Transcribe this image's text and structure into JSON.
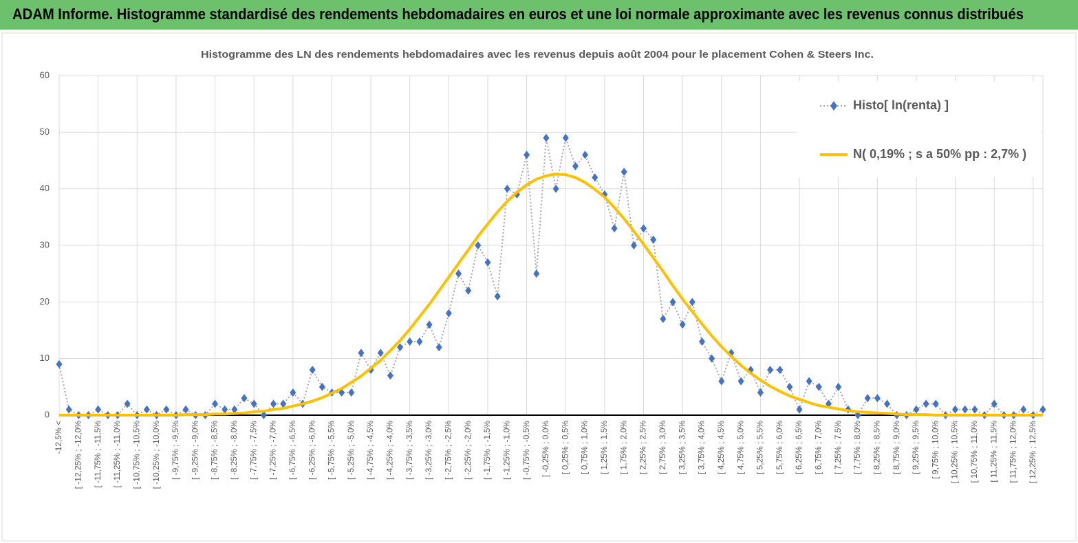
{
  "header": {
    "title": "ADAM Informe. Histogramme standardisé des rendements hebdomadaires en euros et une loi normale approximante avec les revenus connus distribués"
  },
  "chart_data": {
    "type": "line",
    "title": "Histogramme  des LN des rendements hebdomadaires avec les revenus depuis août 2004  pour le placement Cohen & Steers Inc.",
    "categories": [
      "-12,5% <",
      null,
      "[ -12,25% ; -12,0%",
      null,
      "[ -11,75% ; -11,5%",
      null,
      "[ -11,25% ; -11,0%",
      null,
      "[ -10,75% ; -10,5%",
      null,
      "[ -10,25% ; -10,0%",
      null,
      "[ -9,75% ; -9,5%",
      null,
      "[ -9,25% ; -9,0%",
      null,
      "[ -8,75% ; -8,5%",
      null,
      "[ -8,25% ; -8,0%",
      null,
      "[ -7,75% ; -7,5%",
      null,
      "[ -7,25% ; -7,0%",
      null,
      "[ -6,75% ; -6,5%",
      null,
      "[ -6,25% ; -6,0%",
      null,
      "[ -5,75% ; -5,5%",
      null,
      "[ -5,25% ; -5,0%",
      null,
      "[ -4,75% ; -4,5%",
      null,
      "[ -4,25% ; -4,0%",
      null,
      "[ -3,75% ; -3,5%",
      null,
      "[ -3,25% ; -3,0%",
      null,
      "[ -2,75% ; -2,5%",
      null,
      "[ -2,25% ; -2,0%",
      null,
      "[ -1,75% ; -1,5%",
      null,
      "[ -1,25% ; -1,0%",
      null,
      "[ -0,75% ; -0,5%",
      null,
      "[ -0,25% ; 0,0%",
      null,
      "[ 0,25% ; 0,5%",
      null,
      "[ 0,75% ; 1,0%",
      null,
      "[ 1,25% ; 1,5%",
      null,
      "[ 1,75% ; 2,0%",
      null,
      "[ 2,25% ; 2,5%",
      null,
      "[ 2,75% ; 3,0%",
      null,
      "[ 3,25% ; 3,5%",
      null,
      "[ 3,75% ; 4,0%",
      null,
      "[ 4,25% ; 4,5%",
      null,
      "[ 4,75% ; 5,0%",
      null,
      "[ 5,25% ; 5,5%",
      null,
      "[ 5,75% ; 6,0%",
      null,
      "[ 6,25% ; 6,5%",
      null,
      "[ 6,75% ; 7,0%",
      null,
      "[ 7,25% ; 7,5%",
      null,
      "[ 7,75% ; 8,0%",
      null,
      "[ 8,25% ; 8,5%",
      null,
      "[ 8,75% ; 9,0%",
      null,
      "[ 9,25% ; 9,5%",
      null,
      "[ 9,75% ; 10,0%",
      null,
      "[ 10,25% ; 10,5%",
      null,
      "[ 10,75% ; 11,0%",
      null,
      "[ 11,25% ; 11,5%",
      null,
      "[ 11,75% ; 12,0%",
      null,
      "[ 12,25% ; 12,5%",
      null
    ],
    "series": [
      {
        "name": "Histo[ ln(renta) ]",
        "color": "#4472c4",
        "line_color": "#a6a6a6",
        "line_style": "dotted",
        "marker": "diamond",
        "values": [
          9,
          1,
          0,
          0,
          1,
          0,
          0,
          2,
          0,
          1,
          0,
          1,
          0,
          1,
          0,
          0,
          2,
          1,
          1,
          3,
          2,
          0,
          2,
          2,
          4,
          2,
          8,
          5,
          4,
          4,
          4,
          11,
          8,
          11,
          7,
          12,
          13,
          13,
          16,
          12,
          18,
          25,
          22,
          30,
          27,
          21,
          40,
          39,
          46,
          25,
          49,
          40,
          49,
          44,
          46,
          42,
          39,
          33,
          43,
          30,
          33,
          31,
          17,
          20,
          16,
          20,
          13,
          10,
          6,
          11,
          6,
          8,
          4,
          8,
          8,
          5,
          1,
          6,
          5,
          2,
          5,
          1,
          0,
          3,
          3,
          2,
          0,
          0,
          1,
          2,
          2,
          0,
          1,
          1,
          1,
          0,
          2,
          0,
          0,
          1,
          0,
          1
        ]
      },
      {
        "name": "N( 0,19% ; s a 50% pp : 2,7% )",
        "color": "#ffc000",
        "line_color": "#ffc000",
        "line_style": "solid",
        "marker": "none",
        "values": [
          0,
          0,
          0,
          0,
          0,
          0,
          0,
          0,
          0,
          0,
          0,
          0,
          0,
          0.1,
          0.1,
          0.1,
          0.2,
          0.2,
          0.3,
          0.4,
          0.6,
          0.7,
          1.0,
          1.2,
          1.6,
          2.0,
          2.5,
          3.1,
          3.9,
          4.7,
          5.8,
          6.9,
          8.3,
          9.7,
          11.4,
          13.2,
          15.2,
          17.4,
          19.6,
          22.0,
          24.4,
          26.8,
          29.2,
          31.6,
          33.8,
          35.9,
          37.8,
          39.4,
          40.7,
          41.7,
          42.3,
          42.6,
          42.5,
          42.0,
          41.1,
          39.9,
          38.5,
          36.7,
          34.7,
          32.5,
          30.2,
          27.8,
          25.4,
          22.9,
          20.5,
          18.3,
          16.1,
          14.0,
          12.1,
          10.4,
          8.8,
          7.4,
          6.2,
          5.1,
          4.2,
          3.4,
          2.8,
          2.2,
          1.7,
          1.4,
          1.1,
          0.8,
          0.6,
          0.5,
          0.4,
          0.3,
          0.2,
          0.1,
          0.1,
          0.1,
          0,
          0,
          0,
          0,
          0,
          0,
          0,
          0,
          0,
          0,
          0,
          0
        ]
      }
    ],
    "ylim": [
      0,
      60
    ],
    "yticks": [
      0,
      10,
      20,
      30,
      40,
      50,
      60
    ],
    "grid": true,
    "legend": "top-right"
  }
}
